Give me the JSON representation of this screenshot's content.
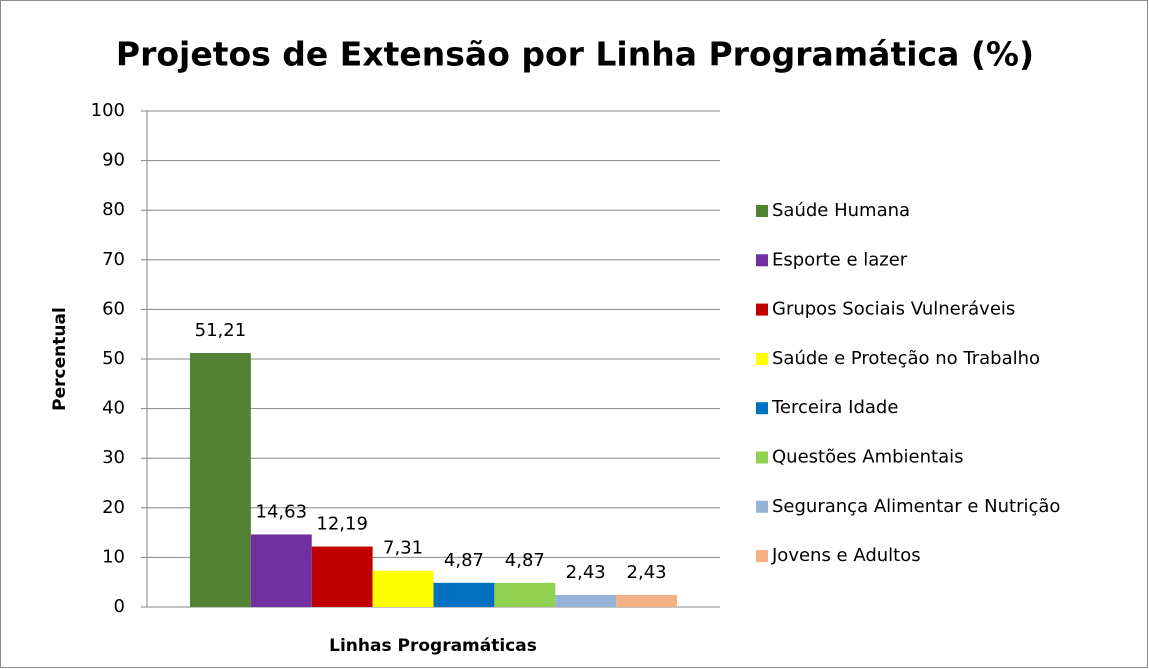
{
  "chart_data": {
    "type": "bar",
    "title": "Projetos de Extensão por Linha Programática (%)",
    "x_label": "Linhas Programáticas",
    "y_label": "Percentual",
    "categories": [
      null
    ],
    "series": [
      {
        "name": "Saúde Humana",
        "color": "#548235",
        "values": [
          51.21
        ],
        "value_labels": [
          "51,21"
        ]
      },
      {
        "name": "Esporte e lazer",
        "color": "#7030a0",
        "values": [
          14.63
        ],
        "value_labels": [
          "14,63"
        ]
      },
      {
        "name": "Grupos Sociais Vulneráveis",
        "color": "#c00000",
        "values": [
          12.19
        ],
        "value_labels": [
          "12,19"
        ]
      },
      {
        "name": "Saúde e Proteção no Trabalho",
        "color": "#ffff00",
        "values": [
          7.31
        ],
        "value_labels": [
          "7,31"
        ]
      },
      {
        "name": "Terceira Idade",
        "color": "#0070c0",
        "values": [
          4.87
        ],
        "value_labels": [
          "4,87"
        ]
      },
      {
        "name": "Questões Ambientais",
        "color": "#92d050",
        "values": [
          4.87
        ],
        "value_labels": [
          "4,87"
        ]
      },
      {
        "name": "Segurança Alimentar e Nutrição",
        "color": "#95b3d7",
        "values": [
          2.43
        ],
        "value_labels": [
          "2,43"
        ]
      },
      {
        "name": "Jovens e Adultos",
        "color": "#f4b183",
        "values": [
          2.43
        ],
        "value_labels": [
          "2,43"
        ]
      }
    ],
    "ylim": [
      0,
      100
    ],
    "yticks": [
      0,
      10,
      20,
      30,
      40,
      50,
      60,
      70,
      80,
      90,
      100
    ],
    "grid": true,
    "legend": "right"
  }
}
